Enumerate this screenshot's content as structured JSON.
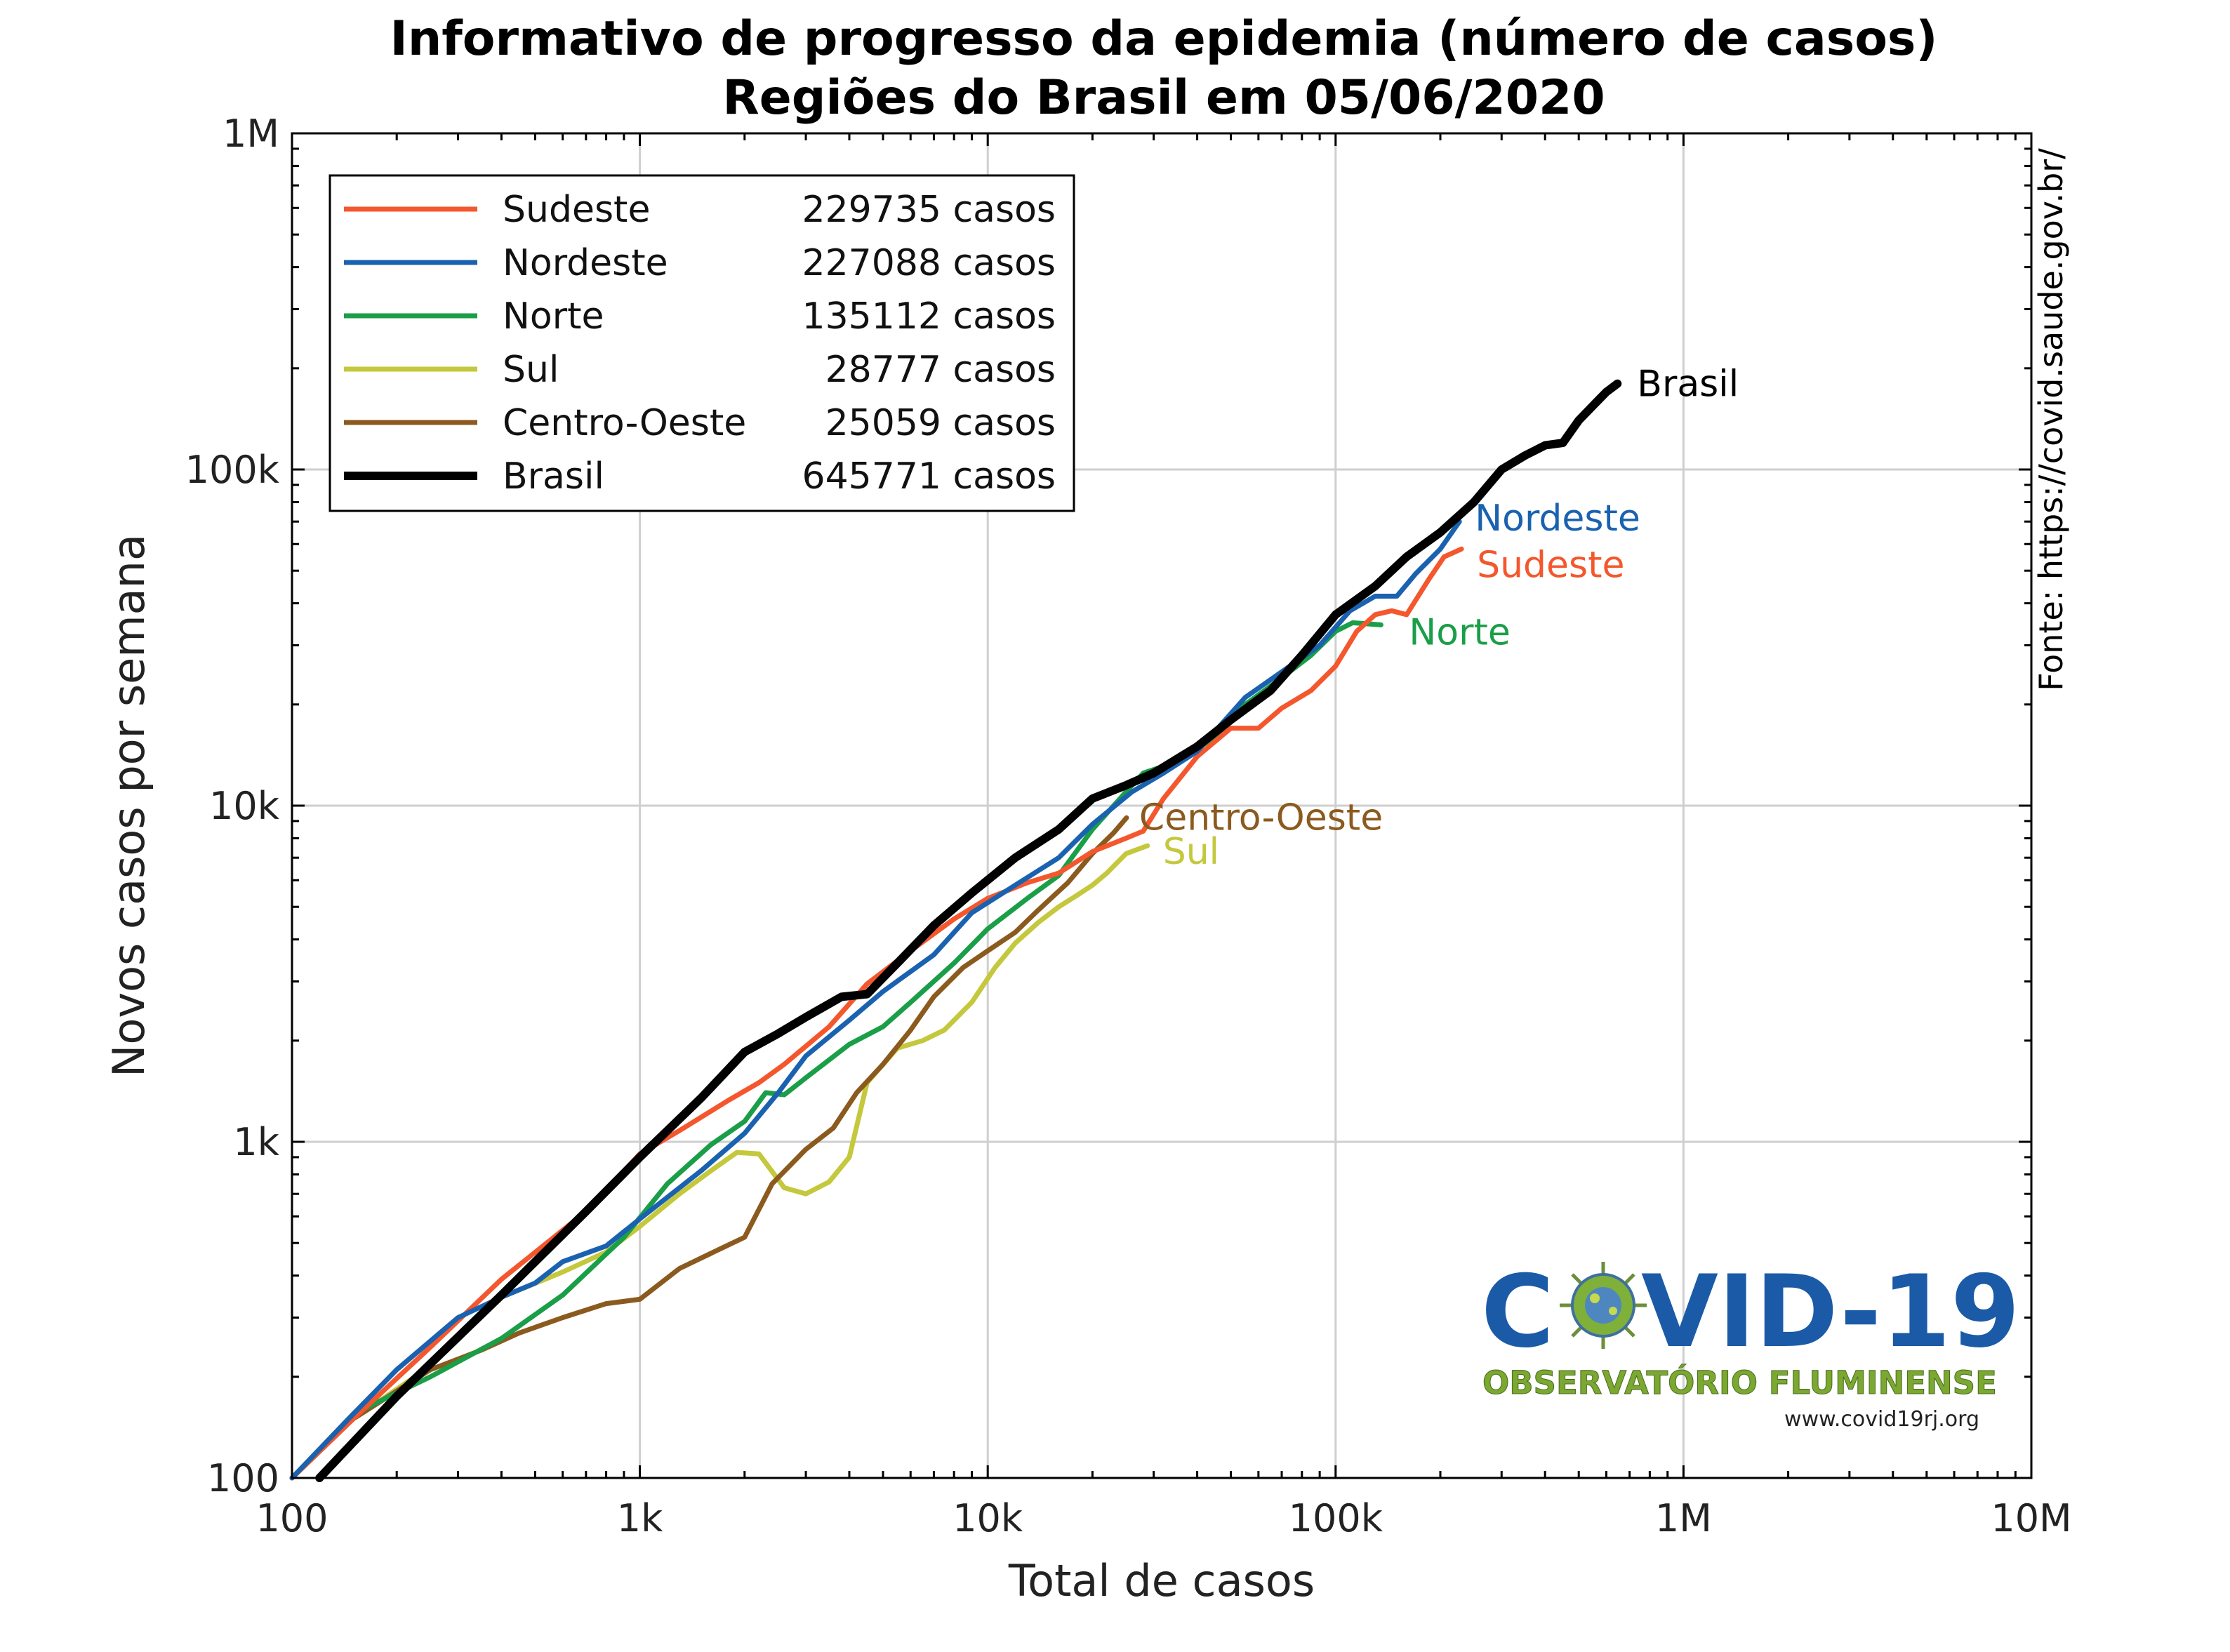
{
  "chart_data": {
    "type": "line",
    "title": "Informativo de progresso da epidemia (número de casos)",
    "subtitle": "Regiões do Brasil em 05/06/2020",
    "xlabel": "Total de casos",
    "ylabel": "Novos casos por semana",
    "xscale": "log",
    "yscale": "log",
    "xlim": [
      100,
      10000000
    ],
    "ylim": [
      100,
      1000000
    ],
    "x_ticks": [
      {
        "value": 100,
        "label": "100"
      },
      {
        "value": 1000,
        "label": "1k"
      },
      {
        "value": 10000,
        "label": "10k"
      },
      {
        "value": 100000,
        "label": "100k"
      },
      {
        "value": 1000000,
        "label": "1M"
      },
      {
        "value": 10000000,
        "label": "10M"
      }
    ],
    "y_ticks": [
      {
        "value": 100,
        "label": "100"
      },
      {
        "value": 1000,
        "label": "1k"
      },
      {
        "value": 10000,
        "label": "10k"
      },
      {
        "value": 100000,
        "label": "100k"
      },
      {
        "value": 1000000,
        "label": "1M"
      }
    ],
    "grid": true,
    "legend_position": "top-left",
    "source_note": "Fonte: https://covid.saude.gov.br/",
    "series": [
      {
        "name": "Sudeste",
        "legend_value": "229735 casos",
        "color": "#f4572d",
        "width": 7,
        "end_label": "Sudeste",
        "points": [
          [
            100,
            100
          ],
          [
            150,
            150
          ],
          [
            250,
            245
          ],
          [
            400,
            390
          ],
          [
            700,
            620
          ],
          [
            1000,
            920
          ],
          [
            1300,
            1080
          ],
          [
            1800,
            1330
          ],
          [
            2200,
            1500
          ],
          [
            2600,
            1700
          ],
          [
            3500,
            2200
          ],
          [
            4500,
            2950
          ],
          [
            6000,
            3700
          ],
          [
            8000,
            4600
          ],
          [
            10000,
            5300
          ],
          [
            13000,
            5900
          ],
          [
            16000,
            6300
          ],
          [
            20000,
            7300
          ],
          [
            25000,
            8000
          ],
          [
            28000,
            8400
          ],
          [
            32000,
            10500
          ],
          [
            40000,
            14000
          ],
          [
            50000,
            17000
          ],
          [
            60000,
            17000
          ],
          [
            70000,
            19500
          ],
          [
            85000,
            22000
          ],
          [
            100000,
            26000
          ],
          [
            115000,
            33000
          ],
          [
            130000,
            37000
          ],
          [
            145000,
            38000
          ],
          [
            160000,
            37000
          ],
          [
            185000,
            47000
          ],
          [
            205000,
            55000
          ],
          [
            230000,
            58000
          ]
        ]
      },
      {
        "name": "Nordeste",
        "legend_value": "227088 casos",
        "color": "#1a62b0",
        "width": 7,
        "end_label": "Nordeste",
        "points": [
          [
            100,
            100
          ],
          [
            150,
            155
          ],
          [
            200,
            210
          ],
          [
            300,
            300
          ],
          [
            400,
            345
          ],
          [
            500,
            380
          ],
          [
            600,
            440
          ],
          [
            800,
            490
          ],
          [
            1000,
            590
          ],
          [
            1500,
            820
          ],
          [
            2000,
            1060
          ],
          [
            2500,
            1400
          ],
          [
            3000,
            1800
          ],
          [
            4000,
            2300
          ],
          [
            5000,
            2800
          ],
          [
            7000,
            3600
          ],
          [
            9000,
            4800
          ],
          [
            12000,
            5800
          ],
          [
            16000,
            7000
          ],
          [
            20000,
            8800
          ],
          [
            26000,
            11000
          ],
          [
            32000,
            12500
          ],
          [
            40000,
            14500
          ],
          [
            55000,
            21000
          ],
          [
            70000,
            25000
          ],
          [
            90000,
            30000
          ],
          [
            110000,
            38000
          ],
          [
            130000,
            42000
          ],
          [
            150000,
            42000
          ],
          [
            170000,
            49000
          ],
          [
            200000,
            58000
          ],
          [
            227000,
            70000
          ]
        ]
      },
      {
        "name": "Norte",
        "legend_value": "135112 casos",
        "color": "#1a9e48",
        "width": 7,
        "end_label": "Norte",
        "points": [
          [
            100,
            100
          ],
          [
            150,
            155
          ],
          [
            250,
            200
          ],
          [
            400,
            260
          ],
          [
            600,
            350
          ],
          [
            900,
            520
          ],
          [
            1200,
            750
          ],
          [
            1600,
            980
          ],
          [
            2000,
            1150
          ],
          [
            2300,
            1400
          ],
          [
            2600,
            1380
          ],
          [
            3000,
            1550
          ],
          [
            4000,
            1950
          ],
          [
            5000,
            2200
          ],
          [
            6000,
            2600
          ],
          [
            8000,
            3400
          ],
          [
            10000,
            4300
          ],
          [
            13000,
            5300
          ],
          [
            16000,
            6200
          ],
          [
            20000,
            8500
          ],
          [
            25000,
            11000
          ],
          [
            28000,
            12500
          ],
          [
            35000,
            13500
          ],
          [
            45000,
            16000
          ],
          [
            55000,
            20000
          ],
          [
            70000,
            24000
          ],
          [
            85000,
            28000
          ],
          [
            100000,
            33000
          ],
          [
            112000,
            35000
          ],
          [
            135000,
            34500
          ]
        ]
      },
      {
        "name": "Sul",
        "legend_value": "28777 casos",
        "color": "#c4c83c",
        "width": 7,
        "end_label": "Sul",
        "points": [
          [
            100,
            100
          ],
          [
            150,
            150
          ],
          [
            250,
            215
          ],
          [
            400,
            345
          ],
          [
            600,
            410
          ],
          [
            800,
            470
          ],
          [
            1000,
            560
          ],
          [
            1300,
            700
          ],
          [
            1600,
            820
          ],
          [
            1900,
            930
          ],
          [
            2200,
            920
          ],
          [
            2600,
            730
          ],
          [
            3000,
            700
          ],
          [
            3500,
            760
          ],
          [
            4000,
            900
          ],
          [
            4500,
            1500
          ],
          [
            5500,
            1900
          ],
          [
            6500,
            2000
          ],
          [
            7500,
            2150
          ],
          [
            9000,
            2600
          ],
          [
            10500,
            3300
          ],
          [
            12000,
            3900
          ],
          [
            14000,
            4500
          ],
          [
            16000,
            5000
          ],
          [
            18000,
            5400
          ],
          [
            20000,
            5800
          ],
          [
            22000,
            6300
          ],
          [
            25000,
            7200
          ],
          [
            28777,
            7600
          ]
        ]
      },
      {
        "name": "Centro-Oeste",
        "legend_value": "25059 casos",
        "color": "#8b5a1e",
        "width": 7,
        "end_label": "Centro-Oeste",
        "points": [
          [
            100,
            100
          ],
          [
            150,
            150
          ],
          [
            250,
            210
          ],
          [
            350,
            240
          ],
          [
            450,
            270
          ],
          [
            600,
            300
          ],
          [
            800,
            330
          ],
          [
            1000,
            340
          ],
          [
            1300,
            420
          ],
          [
            1700,
            480
          ],
          [
            2000,
            520
          ],
          [
            2400,
            750
          ],
          [
            3000,
            950
          ],
          [
            3600,
            1100
          ],
          [
            4200,
            1400
          ],
          [
            5000,
            1700
          ],
          [
            6000,
            2150
          ],
          [
            7000,
            2700
          ],
          [
            8500,
            3300
          ],
          [
            10000,
            3700
          ],
          [
            12000,
            4200
          ],
          [
            14000,
            4900
          ],
          [
            17000,
            5900
          ],
          [
            20000,
            7200
          ],
          [
            23000,
            8300
          ],
          [
            25059,
            9200
          ]
        ]
      },
      {
        "name": "Brasil",
        "legend_value": "645771 casos",
        "color": "#000000",
        "width": 12,
        "end_label": "Brasil",
        "points": [
          [
            120,
            100
          ],
          [
            200,
            175
          ],
          [
            400,
            350
          ],
          [
            700,
            620
          ],
          [
            1000,
            900
          ],
          [
            1500,
            1350
          ],
          [
            2000,
            1850
          ],
          [
            2500,
            2100
          ],
          [
            3000,
            2350
          ],
          [
            3800,
            2700
          ],
          [
            4500,
            2750
          ],
          [
            5500,
            3400
          ],
          [
            7000,
            4400
          ],
          [
            9000,
            5500
          ],
          [
            12000,
            7000
          ],
          [
            16000,
            8500
          ],
          [
            20000,
            10500
          ],
          [
            25000,
            11500
          ],
          [
            30000,
            12500
          ],
          [
            40000,
            15000
          ],
          [
            50000,
            18000
          ],
          [
            65000,
            22000
          ],
          [
            80000,
            28000
          ],
          [
            100000,
            37000
          ],
          [
            130000,
            45000
          ],
          [
            160000,
            55000
          ],
          [
            200000,
            65000
          ],
          [
            250000,
            80000
          ],
          [
            300000,
            100000
          ],
          [
            350000,
            110000
          ],
          [
            400000,
            118000
          ],
          [
            450000,
            120000
          ],
          [
            500000,
            140000
          ],
          [
            550000,
            155000
          ],
          [
            600000,
            170000
          ],
          [
            645771,
            180000
          ]
        ]
      }
    ]
  },
  "logo": {
    "text_left": "C",
    "text_right": "VID-19",
    "subtitle": "OBSERVATÓRIO FLUMINENSE",
    "url": "www.covid19rj.org",
    "main_color": "#1b5aa6",
    "subtitle_color": "#7aa830"
  }
}
